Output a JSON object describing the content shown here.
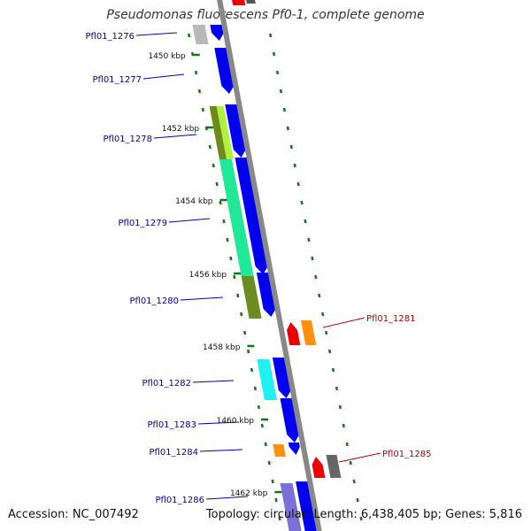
{
  "header": {
    "title": "Pseudomonas fluorescens Pf0-1, complete genome"
  },
  "footer": {
    "accession": "Accession: NC_007492",
    "summary": "Topology: circular; Length: 6,438,405 bp; Genes: 5,816"
  },
  "colors": {
    "forward_cds": "#0000ee",
    "reverse_cds": "#ee0000",
    "forward_label": "#0000aa",
    "reverse_label": "#bb0000",
    "tick": "#117711",
    "backbone": "#888888"
  },
  "ruler": {
    "ticks": [
      {
        "label": "1450 kbp"
      },
      {
        "label": "1452 kbp"
      },
      {
        "label": "1454 kbp"
      },
      {
        "label": "1456 kbp"
      },
      {
        "label": "1458 kbp"
      },
      {
        "label": "1460 kbp"
      },
      {
        "label": "1462 kbp"
      }
    ]
  },
  "genes": [
    {
      "name": "Pfl01_1276",
      "strand": "forward"
    },
    {
      "name": "Pfl01_1277",
      "strand": "forward"
    },
    {
      "name": "Pfl01_1278",
      "strand": "forward"
    },
    {
      "name": "Pfl01_1279",
      "strand": "forward"
    },
    {
      "name": "Pfl01_1280",
      "strand": "forward"
    },
    {
      "name": "Pfl01_1281",
      "strand": "reverse"
    },
    {
      "name": "Pfl01_1282",
      "strand": "forward"
    },
    {
      "name": "Pfl01_1283",
      "strand": "forward"
    },
    {
      "name": "Pfl01_1284",
      "strand": "forward"
    },
    {
      "name": "Pfl01_1285",
      "strand": "reverse"
    },
    {
      "name": "Pfl01_1286",
      "strand": "forward"
    }
  ]
}
